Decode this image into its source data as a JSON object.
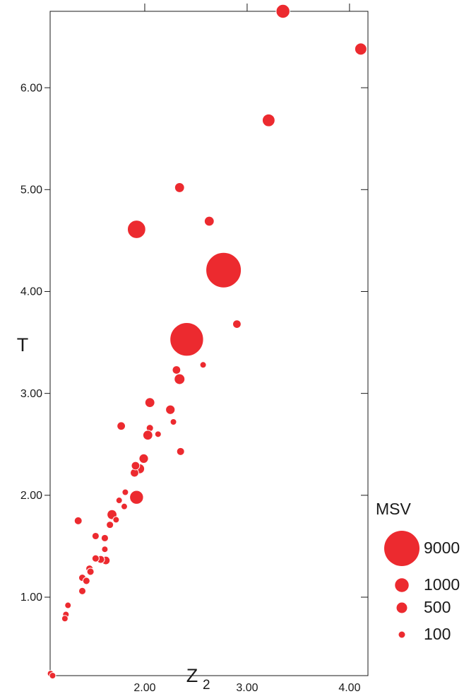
{
  "chart_data": {
    "type": "scatter",
    "ylabel": "T",
    "xlabel": "Z",
    "xlabel_subscript": "2",
    "color": "#ec2a2f",
    "xlim": [
      1.076,
      4.18
    ],
    "ylim": [
      0.23,
      6.75
    ],
    "xticks": [
      {
        "value": 2,
        "label": "2.00"
      },
      {
        "value": 3,
        "label": "3.00"
      },
      {
        "value": 4,
        "label": "4.00"
      }
    ],
    "yticks": [
      {
        "value": 1,
        "label": "1.00"
      },
      {
        "value": 2,
        "label": "2.00"
      },
      {
        "value": 3,
        "label": "3.00"
      },
      {
        "value": 4,
        "label": "4.00"
      },
      {
        "value": 5,
        "label": "5.00"
      },
      {
        "value": 6,
        "label": "6.00"
      }
    ],
    "size_legend_title": "MSV",
    "size_legend": [
      9000,
      1000,
      500,
      100
    ],
    "x": [
      3.35,
      4.11,
      3.21,
      2.34,
      1.92,
      2.63,
      2.77,
      2.9,
      2.41,
      2.31,
      2.34,
      2.57,
      2.05,
      2.25,
      1.77,
      2.28,
      2.05,
      2.03,
      2.13,
      2.35,
      1.99,
      1.95,
      1.9,
      1.91,
      1.92,
      1.81,
      1.75,
      1.8,
      1.68,
      1.72,
      1.66,
      1.35,
      1.52,
      1.61,
      1.61,
      1.62,
      1.57,
      1.52,
      1.46,
      1.47,
      1.39,
      1.43,
      1.39,
      1.25,
      1.23,
      1.22,
      1.08,
      1.1
    ],
    "values": [
      6.75,
      6.38,
      5.68,
      5.02,
      4.61,
      4.69,
      4.21,
      3.68,
      3.53,
      3.23,
      3.14,
      3.28,
      2.91,
      2.84,
      2.68,
      2.72,
      2.66,
      2.59,
      2.6,
      2.43,
      2.36,
      2.26,
      2.22,
      2.29,
      1.98,
      2.03,
      1.95,
      1.89,
      1.81,
      1.76,
      1.71,
      1.75,
      1.6,
      1.58,
      1.47,
      1.36,
      1.37,
      1.38,
      1.28,
      1.25,
      1.19,
      1.16,
      1.06,
      0.92,
      0.83,
      0.79,
      0.25,
      0.23
    ],
    "sizes": [
      1000,
      700,
      800,
      400,
      2000,
      400,
      9000,
      250,
      8000,
      250,
      500,
      100,
      400,
      350,
      250,
      100,
      150,
      400,
      100,
      200,
      350,
      400,
      250,
      250,
      1000,
      100,
      100,
      100,
      400,
      100,
      150,
      200,
      150,
      150,
      100,
      250,
      200,
      150,
      150,
      150,
      150,
      150,
      150,
      100,
      100,
      100,
      100,
      100
    ]
  }
}
